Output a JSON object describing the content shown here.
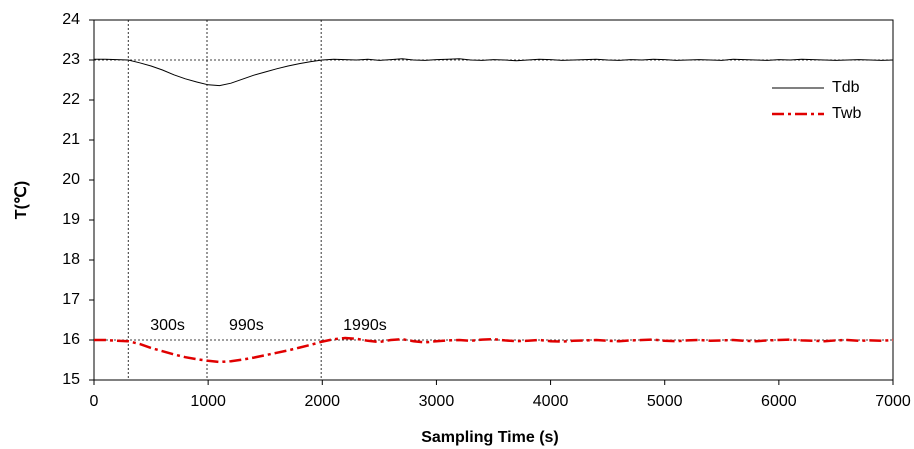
{
  "chart_data": {
    "type": "line",
    "x_label": "Sampling Time (s)",
    "y_label": "T(℃)",
    "x": [
      0,
      100,
      200,
      300,
      400,
      500,
      600,
      700,
      800,
      900,
      1000,
      1100,
      1200,
      1300,
      1400,
      1500,
      1600,
      1700,
      1800,
      1900,
      2000,
      2100,
      2200,
      2300,
      2400,
      2500,
      2600,
      2700,
      2800,
      2900,
      3000,
      3100,
      3200,
      3300,
      3400,
      3500,
      3600,
      3700,
      3800,
      3900,
      4000,
      4100,
      4200,
      4300,
      4400,
      4500,
      4600,
      4700,
      4800,
      4900,
      5000,
      5100,
      5200,
      5300,
      5400,
      5500,
      5600,
      5700,
      5800,
      5900,
      6000,
      6100,
      6200,
      6300,
      6400,
      6500,
      6600,
      6700,
      6800,
      6900,
      7000
    ],
    "series": [
      {
        "name": "Tdb",
        "color": "#000000",
        "style": "solid",
        "values": [
          23.02,
          23.02,
          23.01,
          23.0,
          22.93,
          22.85,
          22.75,
          22.63,
          22.53,
          22.45,
          22.38,
          22.36,
          22.42,
          22.52,
          22.62,
          22.7,
          22.78,
          22.85,
          22.91,
          22.96,
          23.0,
          23.02,
          23.01,
          23.0,
          23.02,
          22.99,
          23.01,
          23.03,
          23.0,
          22.99,
          23.01,
          23.02,
          23.03,
          23.0,
          22.99,
          23.01,
          23.0,
          22.98,
          23.0,
          23.02,
          23.01,
          22.99,
          23.0,
          23.01,
          23.02,
          23.0,
          22.99,
          23.01,
          23.0,
          23.02,
          23.01,
          22.99,
          23.0,
          23.01,
          23.0,
          22.99,
          23.02,
          23.01,
          23.0,
          22.99,
          23.01,
          23.0,
          23.02,
          23.01,
          23.0,
          22.99,
          23.0,
          23.01,
          23.0,
          22.99,
          23.0
        ]
      },
      {
        "name": "Twb",
        "color": "#e00000",
        "style": "dashdot",
        "values": [
          16.0,
          16.0,
          15.98,
          15.97,
          15.9,
          15.8,
          15.72,
          15.64,
          15.57,
          15.52,
          15.48,
          15.45,
          15.47,
          15.51,
          15.56,
          15.62,
          15.68,
          15.74,
          15.81,
          15.88,
          15.96,
          16.02,
          16.05,
          16.03,
          15.98,
          15.95,
          16.0,
          16.02,
          15.97,
          15.94,
          15.97,
          15.99,
          16.0,
          15.98,
          16.01,
          16.02,
          15.99,
          15.97,
          15.98,
          16.0,
          15.97,
          15.96,
          15.98,
          15.99,
          16.0,
          15.98,
          15.97,
          15.99,
          16.0,
          16.01,
          15.98,
          15.97,
          15.99,
          16.0,
          15.98,
          15.99,
          16.0,
          15.98,
          15.97,
          15.99,
          16.0,
          16.01,
          15.99,
          15.98,
          15.97,
          15.99,
          16.0,
          15.98,
          15.99,
          15.98,
          16.0
        ]
      }
    ],
    "xlim": [
      0,
      7000
    ],
    "xticks": [
      0,
      1000,
      2000,
      3000,
      4000,
      5000,
      6000,
      7000
    ],
    "ylim": [
      15,
      24
    ],
    "yticks": [
      15,
      16,
      17,
      18,
      19,
      20,
      21,
      22,
      23,
      24
    ],
    "hlines": [
      23,
      16
    ],
    "annotations": [
      {
        "value": 300,
        "label": "300s"
      },
      {
        "value": 990,
        "label": "990s"
      },
      {
        "value": 1990,
        "label": "1990s"
      }
    ],
    "legend": "upper right"
  }
}
